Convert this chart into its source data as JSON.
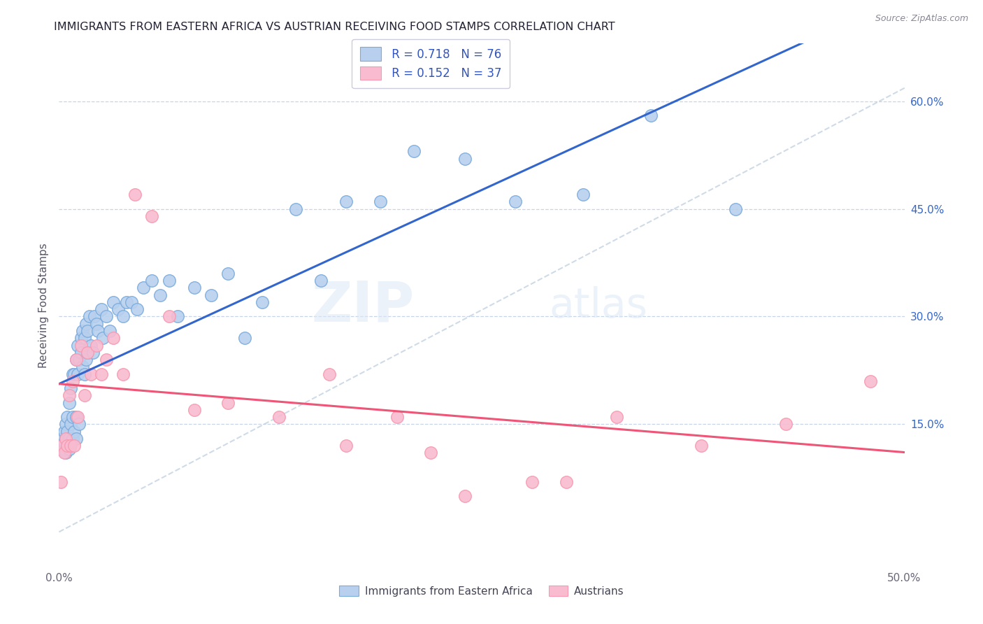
{
  "title": "IMMIGRANTS FROM EASTERN AFRICA VS AUSTRIAN RECEIVING FOOD STAMPS CORRELATION CHART",
  "source": "Source: ZipAtlas.com",
  "ylabel": "Receiving Food Stamps",
  "xlim": [
    0.0,
    0.5
  ],
  "ylim": [
    -0.05,
    0.68
  ],
  "grid_color": "#c8d4e8",
  "background_color": "#ffffff",
  "blue_color": "#7aabdd",
  "pink_color": "#f899b0",
  "blue_fill": "#b8d0ee",
  "pink_fill": "#f8bbd0",
  "trendline_blue": "#3366cc",
  "trendline_pink": "#ee5577",
  "trendline_dashed": "#bbccdd",
  "watermark_zip": "ZIP",
  "watermark_atlas": "atlas",
  "legend_R_blue": "0.718",
  "legend_N_blue": "76",
  "legend_R_pink": "0.152",
  "legend_N_pink": "37",
  "legend_label_blue": "Immigrants from Eastern Africa",
  "legend_label_pink": "Austrians",
  "blue_scatter_x": [
    0.001,
    0.002,
    0.002,
    0.003,
    0.003,
    0.003,
    0.004,
    0.004,
    0.004,
    0.005,
    0.005,
    0.005,
    0.006,
    0.006,
    0.006,
    0.007,
    0.007,
    0.007,
    0.008,
    0.008,
    0.008,
    0.009,
    0.009,
    0.01,
    0.01,
    0.01,
    0.011,
    0.011,
    0.012,
    0.012,
    0.013,
    0.013,
    0.014,
    0.014,
    0.015,
    0.015,
    0.016,
    0.016,
    0.017,
    0.017,
    0.018,
    0.019,
    0.02,
    0.021,
    0.022,
    0.023,
    0.025,
    0.026,
    0.028,
    0.03,
    0.032,
    0.035,
    0.038,
    0.04,
    0.043,
    0.046,
    0.05,
    0.055,
    0.06,
    0.065,
    0.07,
    0.08,
    0.09,
    0.1,
    0.11,
    0.12,
    0.14,
    0.155,
    0.17,
    0.19,
    0.21,
    0.24,
    0.27,
    0.31,
    0.35,
    0.4
  ],
  "blue_scatter_y": [
    0.115,
    0.12,
    0.13,
    0.115,
    0.125,
    0.14,
    0.11,
    0.13,
    0.15,
    0.12,
    0.14,
    0.16,
    0.115,
    0.13,
    0.18,
    0.125,
    0.15,
    0.2,
    0.13,
    0.16,
    0.22,
    0.14,
    0.22,
    0.13,
    0.16,
    0.24,
    0.22,
    0.26,
    0.15,
    0.24,
    0.25,
    0.27,
    0.23,
    0.28,
    0.22,
    0.27,
    0.24,
    0.29,
    0.25,
    0.28,
    0.3,
    0.26,
    0.25,
    0.3,
    0.29,
    0.28,
    0.31,
    0.27,
    0.3,
    0.28,
    0.32,
    0.31,
    0.3,
    0.32,
    0.32,
    0.31,
    0.34,
    0.35,
    0.33,
    0.35,
    0.3,
    0.34,
    0.33,
    0.36,
    0.27,
    0.32,
    0.45,
    0.35,
    0.46,
    0.46,
    0.53,
    0.52,
    0.46,
    0.47,
    0.58,
    0.45
  ],
  "pink_scatter_x": [
    0.001,
    0.002,
    0.003,
    0.004,
    0.005,
    0.006,
    0.007,
    0.008,
    0.009,
    0.01,
    0.011,
    0.013,
    0.015,
    0.017,
    0.019,
    0.022,
    0.025,
    0.028,
    0.032,
    0.038,
    0.045,
    0.055,
    0.065,
    0.08,
    0.1,
    0.13,
    0.17,
    0.22,
    0.28,
    0.33,
    0.38,
    0.43,
    0.48,
    0.2,
    0.16,
    0.24,
    0.3
  ],
  "pink_scatter_y": [
    0.07,
    0.12,
    0.11,
    0.13,
    0.12,
    0.19,
    0.12,
    0.21,
    0.12,
    0.24,
    0.16,
    0.26,
    0.19,
    0.25,
    0.22,
    0.26,
    0.22,
    0.24,
    0.27,
    0.22,
    0.47,
    0.44,
    0.3,
    0.17,
    0.18,
    0.16,
    0.12,
    0.11,
    0.07,
    0.16,
    0.12,
    0.15,
    0.21,
    0.16,
    0.22,
    0.05,
    0.07
  ]
}
